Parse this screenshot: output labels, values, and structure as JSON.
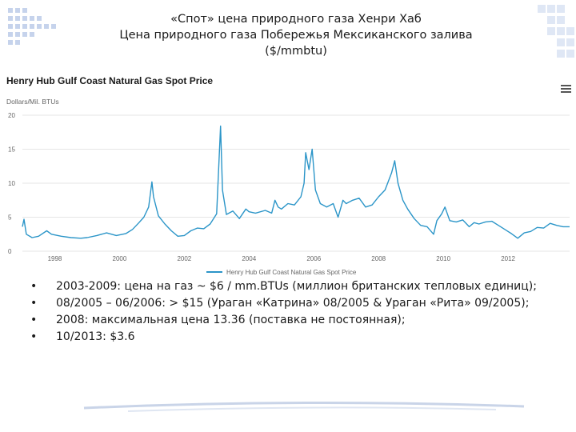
{
  "slide": {
    "title_lines": [
      "«Спот» цена природного газа Хенри Хаб",
      "Цена природного газа Побережья Мексиканского залива",
      "($/mmbtu)"
    ]
  },
  "chart_data": {
    "type": "line",
    "title": "Henry Hub Gulf Coast Natural Gas Spot Price",
    "ylabel": "Dollars/Mil. BTUs",
    "xlabel": "",
    "xlim": [
      1997.0,
      2013.9
    ],
    "ylim": [
      0,
      20
    ],
    "y_ticks": [
      "0",
      "5",
      "10",
      "15",
      "20"
    ],
    "x_ticks": [
      "1998",
      "2000",
      "2002",
      "2004",
      "2006",
      "2008",
      "2010",
      "2012"
    ],
    "grid": "horizontal",
    "legend_position": "bottom-center",
    "series": [
      {
        "name": "Henry Hub Gulf Coast Natural Gas Spot Price",
        "color": "#2b95c8",
        "points": [
          [
            1997.0,
            3.6
          ],
          [
            1997.05,
            4.7
          ],
          [
            1997.12,
            2.5
          ],
          [
            1997.3,
            2.0
          ],
          [
            1997.5,
            2.2
          ],
          [
            1997.75,
            3.0
          ],
          [
            1997.9,
            2.5
          ],
          [
            1998.2,
            2.2
          ],
          [
            1998.5,
            2.0
          ],
          [
            1998.8,
            1.9
          ],
          [
            1999.0,
            2.0
          ],
          [
            1999.3,
            2.3
          ],
          [
            1999.6,
            2.7
          ],
          [
            1999.9,
            2.3
          ],
          [
            2000.2,
            2.6
          ],
          [
            2000.4,
            3.2
          ],
          [
            2000.6,
            4.2
          ],
          [
            2000.75,
            5.0
          ],
          [
            2000.9,
            6.5
          ],
          [
            2001.0,
            10.2
          ],
          [
            2001.05,
            8.0
          ],
          [
            2001.2,
            5.2
          ],
          [
            2001.4,
            4.0
          ],
          [
            2001.6,
            3.0
          ],
          [
            2001.8,
            2.2
          ],
          [
            2002.0,
            2.3
          ],
          [
            2002.2,
            3.0
          ],
          [
            2002.4,
            3.4
          ],
          [
            2002.6,
            3.3
          ],
          [
            2002.8,
            4.0
          ],
          [
            2003.0,
            5.5
          ],
          [
            2003.12,
            18.4
          ],
          [
            2003.18,
            9.0
          ],
          [
            2003.3,
            5.4
          ],
          [
            2003.5,
            5.9
          ],
          [
            2003.7,
            4.8
          ],
          [
            2003.9,
            6.2
          ],
          [
            2004.0,
            5.8
          ],
          [
            2004.2,
            5.6
          ],
          [
            2004.5,
            6.0
          ],
          [
            2004.7,
            5.6
          ],
          [
            2004.8,
            7.5
          ],
          [
            2004.9,
            6.5
          ],
          [
            2005.0,
            6.2
          ],
          [
            2005.2,
            7.0
          ],
          [
            2005.4,
            6.8
          ],
          [
            2005.6,
            8.0
          ],
          [
            2005.7,
            10.0
          ],
          [
            2005.75,
            14.5
          ],
          [
            2005.85,
            12.0
          ],
          [
            2005.95,
            15.0
          ],
          [
            2006.05,
            9.0
          ],
          [
            2006.2,
            7.0
          ],
          [
            2006.4,
            6.5
          ],
          [
            2006.6,
            7.0
          ],
          [
            2006.75,
            5.0
          ],
          [
            2006.9,
            7.5
          ],
          [
            2007.0,
            7.0
          ],
          [
            2007.2,
            7.5
          ],
          [
            2007.4,
            7.8
          ],
          [
            2007.6,
            6.5
          ],
          [
            2007.8,
            6.8
          ],
          [
            2008.0,
            8.0
          ],
          [
            2008.2,
            9.0
          ],
          [
            2008.4,
            11.5
          ],
          [
            2008.5,
            13.3
          ],
          [
            2008.6,
            10.0
          ],
          [
            2008.75,
            7.5
          ],
          [
            2008.9,
            6.2
          ],
          [
            2009.1,
            4.8
          ],
          [
            2009.3,
            3.8
          ],
          [
            2009.5,
            3.6
          ],
          [
            2009.7,
            2.5
          ],
          [
            2009.8,
            4.5
          ],
          [
            2009.95,
            5.5
          ],
          [
            2010.05,
            6.5
          ],
          [
            2010.2,
            4.5
          ],
          [
            2010.4,
            4.3
          ],
          [
            2010.6,
            4.6
          ],
          [
            2010.8,
            3.6
          ],
          [
            2010.95,
            4.2
          ],
          [
            2011.1,
            4.0
          ],
          [
            2011.3,
            4.3
          ],
          [
            2011.5,
            4.4
          ],
          [
            2011.7,
            3.8
          ],
          [
            2011.9,
            3.2
          ],
          [
            2012.1,
            2.6
          ],
          [
            2012.3,
            1.9
          ],
          [
            2012.5,
            2.7
          ],
          [
            2012.7,
            2.9
          ],
          [
            2012.9,
            3.5
          ],
          [
            2013.1,
            3.4
          ],
          [
            2013.3,
            4.1
          ],
          [
            2013.5,
            3.8
          ],
          [
            2013.7,
            3.6
          ],
          [
            2013.9,
            3.6
          ]
        ]
      }
    ]
  },
  "chart_ui": {
    "menu_icon": "hamburger-menu-icon"
  },
  "bullets": {
    "marker": "•",
    "items": [
      "2003-2009: цена на газ ~ $6 / mm.BTUs (миллион британских тепловых единиц);",
      "08/2005 – 06/2006: > $15 (Ураган «Катрина» 08/2005 & Ураган «Рита» 09/2005);",
      "2008: максимальная цена 13.36 (поставка не постоянная);",
      "10/2013: $3.6"
    ]
  }
}
